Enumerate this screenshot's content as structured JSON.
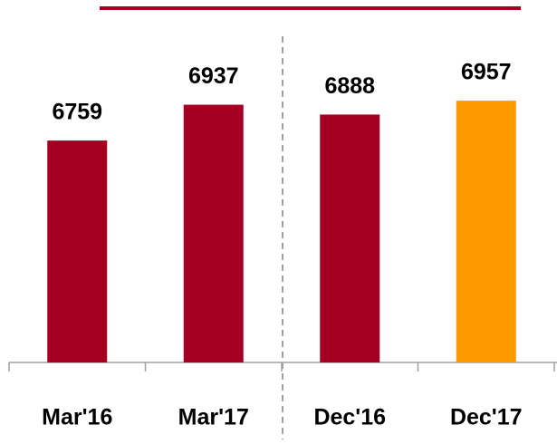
{
  "chart_data": {
    "type": "bar",
    "categories": [
      "Mar'16",
      "Mar'17",
      "Dec'16",
      "Dec'17"
    ],
    "values": [
      6759,
      6937,
      6888,
      6957
    ],
    "colors": [
      "#a50021",
      "#a50021",
      "#a50021",
      "#ff9900"
    ],
    "ylim": [
      5657,
      7457
    ]
  }
}
